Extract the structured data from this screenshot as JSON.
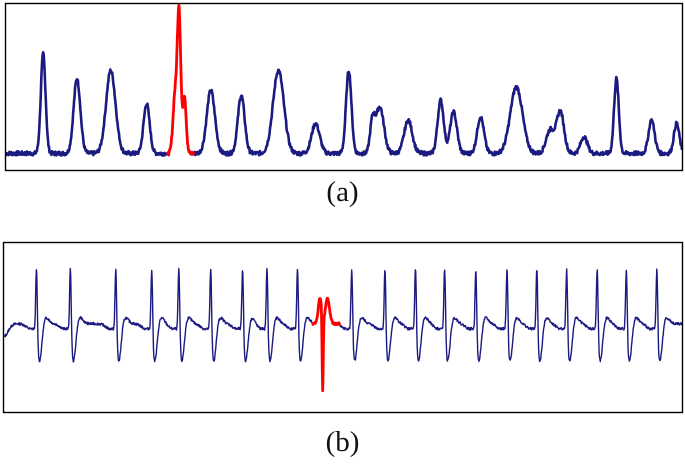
{
  "captions": {
    "a": "(a)",
    "b": "(b)"
  },
  "colors": {
    "signal": "#1a1a80",
    "anomaly": "#ff0000",
    "frame": "#000000"
  },
  "chart_data": [
    {
      "type": "line",
      "panel": "(a)",
      "grid": false,
      "axes_visible": false,
      "xlim": [
        0,
        100
      ],
      "ylim": [
        0,
        1
      ],
      "baseline": 0.1,
      "peaks": [
        {
          "x": 5.5,
          "h": 0.6,
          "w": 0.35
        },
        {
          "x": 10.5,
          "h": 0.45,
          "w": 0.5
        },
        {
          "x": 15.5,
          "h": 0.5,
          "w": 0.7
        },
        {
          "x": 20.8,
          "h": 0.3,
          "w": 0.45
        },
        {
          "x": 30.3,
          "h": 0.38,
          "w": 0.6
        },
        {
          "x": 34.8,
          "h": 0.35,
          "w": 0.5
        },
        {
          "x": 40.3,
          "h": 0.5,
          "w": 0.8
        },
        {
          "x": 45.8,
          "h": 0.18,
          "w": 0.6
        },
        {
          "x": 50.7,
          "h": 0.5,
          "w": 0.4
        },
        {
          "x": 54.2,
          "h": 0.18,
          "w": 0.35
        },
        {
          "x": 55.3,
          "h": 0.28,
          "w": 0.6
        },
        {
          "x": 59.5,
          "h": 0.2,
          "w": 0.6
        },
        {
          "x": 64.3,
          "h": 0.32,
          "w": 0.45
        },
        {
          "x": 66.2,
          "h": 0.25,
          "w": 0.5
        },
        {
          "x": 70.2,
          "h": 0.22,
          "w": 0.5
        },
        {
          "x": 75.5,
          "h": 0.4,
          "w": 0.9
        },
        {
          "x": 80.5,
          "h": 0.14,
          "w": 0.6
        },
        {
          "x": 82.0,
          "h": 0.25,
          "w": 0.55
        },
        {
          "x": 85.5,
          "h": 0.1,
          "w": 0.5
        },
        {
          "x": 90.3,
          "h": 0.45,
          "w": 0.35
        },
        {
          "x": 95.5,
          "h": 0.2,
          "w": 0.45
        },
        {
          "x": 99.2,
          "h": 0.18,
          "w": 0.4
        }
      ],
      "anomaly": {
        "x_range": [
          23.8,
          27.8
        ],
        "peaks": [
          {
            "x": 25.6,
            "h": 0.85,
            "w": 0.25
          },
          {
            "x": 25.0,
            "h": 0.35,
            "w": 0.3
          },
          {
            "x": 26.4,
            "h": 0.35,
            "w": 0.25
          }
        ]
      }
    },
    {
      "type": "line",
      "panel": "(b)",
      "grid": false,
      "axes_visible": false,
      "xlim": [
        0,
        100
      ],
      "ylim": [
        -1,
        1
      ],
      "baseline": 0.05,
      "beats": [
        4.8,
        9.8,
        16.5,
        21.8,
        25.8,
        30.5,
        35.2,
        38.8,
        43.3,
        51.3,
        56.2,
        60.7,
        65.0,
        69.6,
        74.2,
        78.6,
        83.0,
        87.5,
        91.8,
        96.3
      ],
      "r_amplitude": 0.85,
      "s_amplitude": -0.45,
      "anomaly": {
        "x_range": [
          45.5,
          49.5
        ],
        "center": 47.0,
        "up": 0.3,
        "down": -0.9
      }
    }
  ]
}
